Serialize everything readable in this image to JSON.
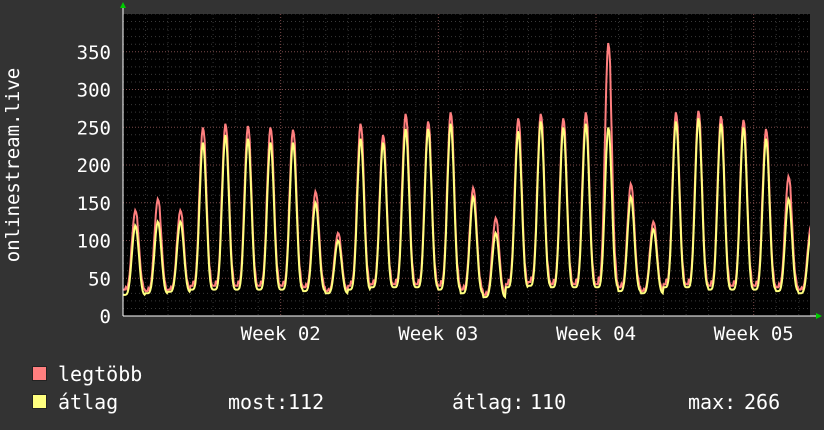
{
  "chart_data": {
    "type": "line",
    "ylabel": "onlinestream.live",
    "ylim": [
      0,
      400
    ],
    "yticks": [
      0,
      50,
      100,
      150,
      200,
      250,
      300,
      350
    ],
    "xticks": [
      {
        "label": "Week 02",
        "day": 7
      },
      {
        "label": "Week 03",
        "day": 14
      },
      {
        "label": "Week 04",
        "day": 21
      },
      {
        "label": "Week 05",
        "day": 28
      }
    ],
    "x_days_range": [
      0,
      30.5
    ],
    "grid": true,
    "legend_position": "bottom-left",
    "series": [
      {
        "name": "legtöbb",
        "color": "#ff7f7f",
        "daily": [
          {
            "peak": 140,
            "low": 35
          },
          {
            "peak": 155,
            "low": 33
          },
          {
            "peak": 140,
            "low": 35
          },
          {
            "peak": 250,
            "low": 40
          },
          {
            "peak": 255,
            "low": 40
          },
          {
            "peak": 252,
            "low": 40
          },
          {
            "peak": 250,
            "low": 40
          },
          {
            "peak": 247,
            "low": 40
          },
          {
            "peak": 165,
            "low": 38
          },
          {
            "peak": 110,
            "low": 33
          },
          {
            "peak": 255,
            "low": 40
          },
          {
            "peak": 240,
            "low": 42
          },
          {
            "peak": 268,
            "low": 42
          },
          {
            "peak": 258,
            "low": 42
          },
          {
            "peak": 270,
            "low": 40
          },
          {
            "peak": 170,
            "low": 35
          },
          {
            "peak": 130,
            "low": 28
          },
          {
            "peak": 262,
            "low": 42
          },
          {
            "peak": 268,
            "low": 45
          },
          {
            "peak": 262,
            "low": 42
          },
          {
            "peak": 270,
            "low": 42
          },
          {
            "peak": 362,
            "low": 42
          },
          {
            "peak": 175,
            "low": 38
          },
          {
            "peak": 125,
            "low": 33
          },
          {
            "peak": 270,
            "low": 42
          },
          {
            "peak": 272,
            "low": 42
          },
          {
            "peak": 265,
            "low": 40
          },
          {
            "peak": 260,
            "low": 40
          },
          {
            "peak": 248,
            "low": 40
          },
          {
            "peak": 185,
            "low": 38
          },
          {
            "peak": 120,
            "low": 35
          }
        ]
      },
      {
        "name": "átlag",
        "color": "#ffff7f",
        "daily": [
          {
            "peak": 120,
            "low": 28
          },
          {
            "peak": 125,
            "low": 30
          },
          {
            "peak": 125,
            "low": 32
          },
          {
            "peak": 230,
            "low": 35
          },
          {
            "peak": 240,
            "low": 35
          },
          {
            "peak": 235,
            "low": 35
          },
          {
            "peak": 230,
            "low": 35
          },
          {
            "peak": 230,
            "low": 35
          },
          {
            "peak": 150,
            "low": 33
          },
          {
            "peak": 100,
            "low": 30
          },
          {
            "peak": 235,
            "low": 35
          },
          {
            "peak": 230,
            "low": 38
          },
          {
            "peak": 248,
            "low": 38
          },
          {
            "peak": 248,
            "low": 38
          },
          {
            "peak": 255,
            "low": 35
          },
          {
            "peak": 158,
            "low": 30
          },
          {
            "peak": 110,
            "low": 25
          },
          {
            "peak": 245,
            "low": 38
          },
          {
            "peak": 258,
            "low": 40
          },
          {
            "peak": 250,
            "low": 38
          },
          {
            "peak": 255,
            "low": 38
          },
          {
            "peak": 250,
            "low": 38
          },
          {
            "peak": 158,
            "low": 33
          },
          {
            "peak": 115,
            "low": 30
          },
          {
            "peak": 258,
            "low": 38
          },
          {
            "peak": 262,
            "low": 38
          },
          {
            "peak": 255,
            "low": 35
          },
          {
            "peak": 250,
            "low": 35
          },
          {
            "peak": 235,
            "low": 35
          },
          {
            "peak": 155,
            "low": 33
          },
          {
            "peak": 110,
            "low": 30
          }
        ]
      }
    ],
    "stats": {
      "current_label": "most:",
      "current_value": "112",
      "average_label": "átlag:",
      "average_value": "110",
      "max_label": "max:",
      "max_value": "266"
    }
  }
}
